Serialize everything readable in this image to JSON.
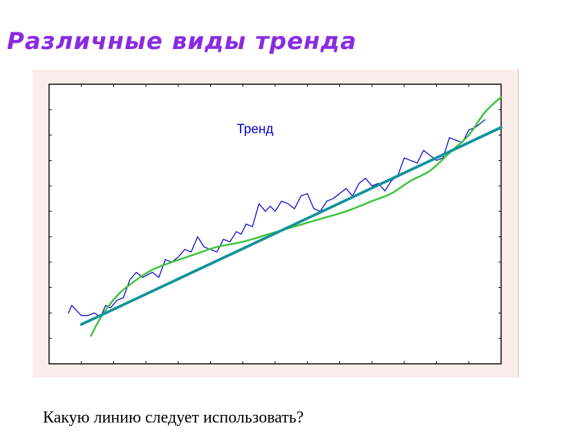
{
  "slide_title": "Различные виды тренда",
  "question": "Какую линию следует использовать?",
  "colors": {
    "title": "#8A2BE2",
    "panel": "#FCECEC",
    "series": "#0000CC",
    "linear_trend": "#13939A",
    "curve_trend": "#3BC43B"
  },
  "chart_data": {
    "type": "line",
    "title": "",
    "annotation": "Тренд",
    "xlabel": "",
    "ylabel": "",
    "xlim": [
      0,
      14
    ],
    "ylim": [
      0,
      11
    ],
    "xticks": [
      1,
      2,
      3,
      4,
      5,
      6,
      7,
      8,
      9,
      10,
      11,
      12,
      13,
      14
    ],
    "yticks": [
      1,
      2,
      3,
      4,
      5,
      6,
      7,
      8,
      9,
      10
    ],
    "grid": false,
    "series": [
      {
        "style": "thin-line",
        "x": [
          0.6,
          0.7,
          0.85,
          1.0,
          1.2,
          1.4,
          1.6,
          1.75,
          1.9,
          2.1,
          2.3,
          2.5,
          2.7,
          2.9,
          3.05,
          3.2,
          3.4,
          3.6,
          3.8,
          4.0,
          4.2,
          4.4,
          4.6,
          4.8,
          5.0,
          5.2,
          5.4,
          5.6,
          5.8,
          5.95,
          6.1,
          6.3,
          6.5,
          6.7,
          6.85,
          7.0,
          7.2,
          7.4,
          7.6,
          7.8,
          8.0,
          8.2,
          8.4,
          8.6,
          8.8,
          9.0,
          9.2,
          9.4,
          9.6,
          9.8,
          10.0,
          10.2,
          10.4,
          10.6,
          10.8,
          11.0,
          11.2,
          11.4,
          11.6,
          11.8,
          12.0,
          12.2,
          12.4,
          12.6,
          12.8,
          13.0,
          13.2,
          13.5
        ],
        "y": [
          2.0,
          2.3,
          2.1,
          1.9,
          1.9,
          2.0,
          1.85,
          2.3,
          2.2,
          2.5,
          2.6,
          3.3,
          3.6,
          3.4,
          3.5,
          3.6,
          3.4,
          4.1,
          4.0,
          4.2,
          4.5,
          4.4,
          5.0,
          4.6,
          4.5,
          4.4,
          4.9,
          4.8,
          5.2,
          5.1,
          5.5,
          5.4,
          6.3,
          6.0,
          6.2,
          6.0,
          6.4,
          6.3,
          6.1,
          6.6,
          6.7,
          6.1,
          6.0,
          6.4,
          6.5,
          6.7,
          6.9,
          6.6,
          7.1,
          7.3,
          7.0,
          7.1,
          6.8,
          7.2,
          7.4,
          8.1,
          8.0,
          7.9,
          8.4,
          8.2,
          8.0,
          8.1,
          8.9,
          8.8,
          8.7,
          9.2,
          9.3,
          9.6
        ]
      },
      {
        "style": "thick-line",
        "x": [
          1.0,
          14.0
        ],
        "y": [
          1.55,
          9.3
        ]
      },
      {
        "style": "curve",
        "x": [
          1.3,
          1.5,
          1.8,
          2.2,
          2.7,
          3.2,
          3.8,
          4.5,
          5.2,
          6.0,
          6.8,
          7.6,
          8.4,
          9.2,
          10.0,
          10.6,
          11.2,
          11.8,
          12.4,
          13.0,
          13.5,
          14.0
        ],
        "y": [
          1.1,
          1.6,
          2.2,
          2.8,
          3.3,
          3.7,
          4.0,
          4.3,
          4.6,
          4.8,
          5.1,
          5.4,
          5.7,
          6.0,
          6.4,
          6.7,
          7.2,
          7.6,
          8.3,
          9.0,
          9.9,
          10.5
        ]
      }
    ]
  }
}
